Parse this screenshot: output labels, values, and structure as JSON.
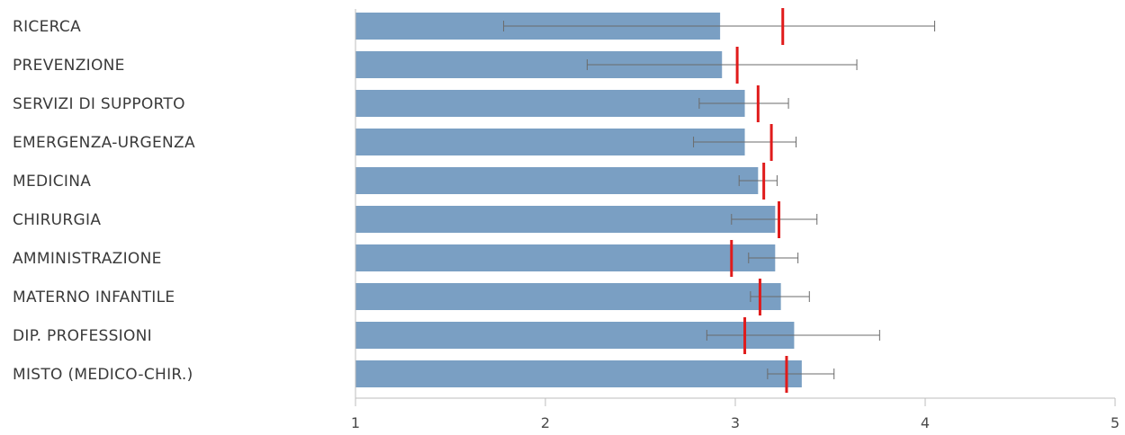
{
  "chart_data": {
    "type": "bar",
    "orientation": "horizontal",
    "categories": [
      "RICERCA",
      "PREVENZIONE",
      "SERVIZI DI SUPPORTO",
      "EMERGENZA-URGENZA",
      "MEDICINA",
      "CHIRURGIA",
      "AMMINISTRAZIONE",
      "MATERNO INFANTILE",
      "DIP. PROFESSIONI",
      "MISTO (MEDICO-CHIR.)"
    ],
    "values": [
      2.92,
      2.93,
      3.05,
      3.05,
      3.12,
      3.21,
      3.21,
      3.24,
      3.31,
      3.35
    ],
    "error_low": [
      1.78,
      2.22,
      2.81,
      2.78,
      3.02,
      2.98,
      3.07,
      3.08,
      2.85,
      3.17
    ],
    "error_high": [
      4.05,
      3.64,
      3.28,
      3.32,
      3.22,
      3.43,
      3.33,
      3.39,
      3.76,
      3.52
    ],
    "reference_markers": [
      3.25,
      3.01,
      3.12,
      3.19,
      3.15,
      3.23,
      2.98,
      3.13,
      3.05,
      3.27
    ],
    "xlim": [
      1,
      5
    ],
    "x_ticks": [
      "1",
      "2",
      "3",
      "4",
      "5"
    ],
    "grid": false,
    "colors": {
      "bar": "#7a9fc3",
      "error_bar": "#6b6b6b",
      "marker": "#e01b1b",
      "axis": "#bdbdbd",
      "label": "#3a3a3a"
    }
  }
}
